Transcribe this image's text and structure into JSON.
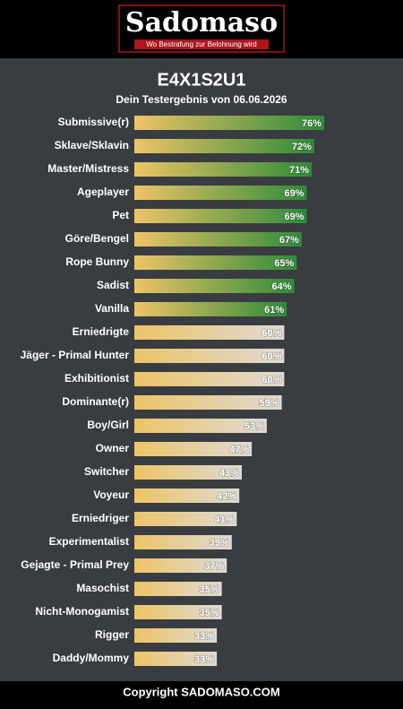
{
  "header": {
    "logo": "Sadomaso",
    "tagline": "Wo Bestrafung zur Belohnung wird"
  },
  "footer": "Copyright SADOMASO.COM",
  "chart_data": {
    "type": "hbar",
    "title": "E4X1S2U1",
    "subtitle": "Dein Testergebnis von 06.06.2026",
    "categories": [
      "Submissive(r)",
      "Sklave/Sklavin",
      "Master/Mistress",
      "Ageplayer",
      "Pet",
      "Göre/Bengel",
      "Rope Bunny",
      "Sadist",
      "Vanilla",
      "Erniedrigte",
      "Jäger - Primal Hunter",
      "Exhibitionist",
      "Dominante(r)",
      "Boy/Girl",
      "Owner",
      "Switcher",
      "Voyeur",
      "Erniedriger",
      "Experimentalist",
      "Gejagte - Primal Prey",
      "Masochist",
      "Nicht-Monogamist",
      "Rigger",
      "Daddy/Mommy"
    ],
    "values": [
      76,
      72,
      71,
      69,
      69,
      67,
      65,
      64,
      61,
      60,
      60,
      60,
      59,
      53,
      47,
      43,
      42,
      41,
      39,
      37,
      35,
      35,
      33,
      33
    ],
    "value_labels": [
      "76%",
      "72%",
      "71%",
      "69%",
      "69%",
      "67%",
      "65%",
      "64%",
      "61%",
      "60%",
      "60%",
      "60%",
      "59%",
      "53%",
      "47%",
      "43%",
      "42%",
      "41%",
      "39%",
      "37%",
      "35%",
      "35%",
      "33%",
      "33%"
    ],
    "gradient_start": "#edc466",
    "colors": [
      "#2e8b3a",
      "#2e8b3a",
      "#2e8b3a",
      "#2e8b3a",
      "#2e8b3a",
      "#2e8b3a",
      "#2e8b3a",
      "#2e8b3a",
      "#2e8b3a",
      "#dedad3",
      "#dedad3",
      "#dedad3",
      "#dedad3",
      "#dedad3",
      "#dedad3",
      "#dedad3",
      "#dedad3",
      "#dedad3",
      "#dedad3",
      "#dedad3",
      "#dedad3",
      "#dedad3",
      "#dedad3",
      "#dedad3"
    ],
    "xlim": [
      0,
      100
    ]
  }
}
